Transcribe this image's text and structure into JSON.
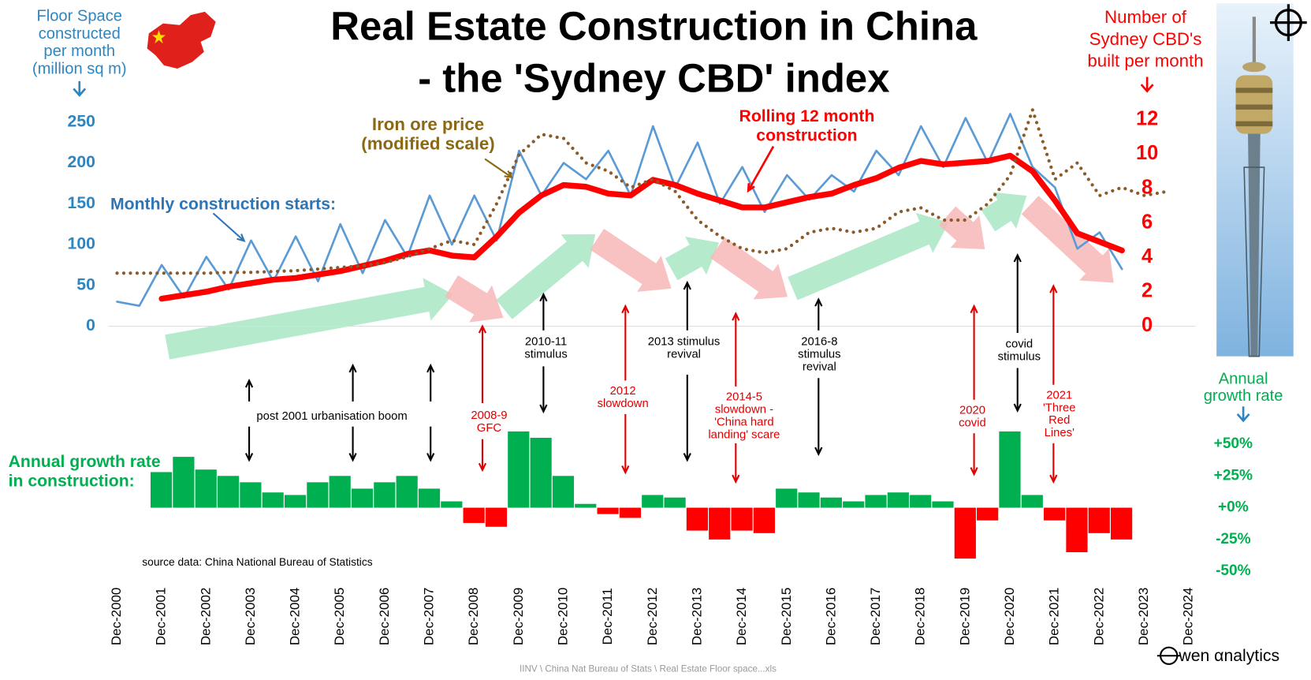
{
  "header": {
    "title": [
      "Real Estate Construction in China",
      "- the 'Sydney CBD' index"
    ]
  },
  "chart_data": {
    "type": "line",
    "x": [
      "Dec-2000",
      null,
      "Dec-2001",
      null,
      "Dec-2002",
      null,
      "Dec-2003",
      null,
      "Dec-2004",
      null,
      "Dec-2005",
      null,
      "Dec-2006",
      null,
      "Dec-2007",
      null,
      "Dec-2008",
      null,
      "Dec-2009",
      null,
      "Dec-2010",
      null,
      "Dec-2011",
      null,
      "Dec-2012",
      null,
      "Dec-2013",
      null,
      "Dec-2014",
      null,
      "Dec-2015",
      null,
      "Dec-2016",
      null,
      "Dec-2017",
      null,
      "Dec-2018",
      null,
      "Dec-2019",
      null,
      "Dec-2020",
      null,
      "Dec-2021",
      null,
      "Dec-2022",
      null,
      "Dec-2023",
      null,
      "Dec-2024"
    ],
    "ylabel": [
      "Floor Space",
      "constructed",
      "per month",
      "(million sq m)"
    ],
    "y2label": [
      "Number of",
      "Sydney CBD's",
      "built per month"
    ],
    "y3label": [
      "Annual",
      "growth rate"
    ],
    "ylim": [
      0,
      250
    ],
    "yticks": [
      0,
      50,
      100,
      150,
      200,
      250
    ],
    "y2lim": [
      0,
      12
    ],
    "y2ticks": [
      0,
      2,
      4,
      6,
      8,
      10,
      12
    ],
    "y3lim": [
      -50,
      50
    ],
    "y3ticks": [
      {
        "value": 50,
        "label": "+50%"
      },
      {
        "value": 25,
        "label": "+25%"
      },
      {
        "value": 0,
        "label": "+0%"
      },
      {
        "value": -25,
        "label": "-25%"
      },
      {
        "value": -50,
        "label": "-50%"
      }
    ],
    "series": [
      {
        "name": [
          "Monthly construction starts:"
        ],
        "type": "line",
        "color": "#5b9bd5",
        "values": [
          30,
          25,
          75,
          35,
          85,
          45,
          105,
          55,
          110,
          55,
          125,
          65,
          130,
          85,
          160,
          100,
          160,
          105,
          215,
          160,
          200,
          180,
          215,
          160,
          245,
          170,
          225,
          150,
          195,
          140,
          185,
          155,
          185,
          165,
          215,
          185,
          245,
          195,
          255,
          200,
          260,
          195,
          170,
          95,
          115,
          70,
          null,
          null,
          null
        ]
      },
      {
        "name": [
          "Rolling 12 month",
          "construction"
        ],
        "type": "line",
        "axis": "y2",
        "color": "#ff0000",
        "values": [
          null,
          null,
          1.6,
          1.8,
          2.0,
          2.3,
          2.5,
          2.7,
          2.8,
          3.0,
          3.2,
          3.5,
          3.8,
          4.2,
          4.4,
          4.1,
          4.0,
          5.2,
          6.6,
          7.6,
          8.2,
          8.1,
          7.7,
          7.6,
          8.5,
          8.2,
          7.7,
          7.3,
          6.9,
          6.9,
          7.2,
          7.5,
          7.7,
          8.2,
          8.6,
          9.2,
          9.6,
          9.4,
          9.5,
          9.6,
          9.9,
          9.0,
          7.3,
          5.4,
          4.9,
          4.4,
          null,
          null,
          null
        ]
      },
      {
        "name": [
          "Iron ore price",
          "(modified scale)"
        ],
        "type": "dotted",
        "color": "#8b5a2b",
        "values": [
          65,
          65,
          65,
          65,
          65,
          66,
          66,
          67,
          68,
          70,
          72,
          74,
          78,
          85,
          95,
          105,
          100,
          150,
          210,
          235,
          230,
          200,
          190,
          170,
          180,
          165,
          130,
          110,
          95,
          90,
          95,
          115,
          120,
          115,
          120,
          140,
          145,
          130,
          130,
          150,
          185,
          265,
          180,
          200,
          160,
          170,
          160,
          165,
          null
        ]
      },
      {
        "name": [
          "Annual growth rate",
          "in construction:"
        ],
        "type": "bar",
        "axis": "y3",
        "color": "#00b050",
        "negative_color": "#ff0000",
        "values": [
          null,
          null,
          28,
          40,
          30,
          25,
          20,
          12,
          10,
          20,
          25,
          15,
          20,
          25,
          15,
          5,
          -12,
          -15,
          60,
          55,
          25,
          3,
          -5,
          -8,
          10,
          8,
          -18,
          -25,
          -18,
          -20,
          15,
          12,
          8,
          5,
          10,
          12,
          10,
          5,
          -40,
          -10,
          60,
          10,
          -10,
          -35,
          -20,
          -25,
          null,
          null,
          null
        ]
      }
    ],
    "annotations": [
      {
        "text": [
          "post 2001 urbanisation boom"
        ]
      },
      {
        "text": [
          "2008-9",
          "GFC"
        ]
      },
      {
        "text": [
          "2010-11",
          "stimulus"
        ]
      },
      {
        "text": [
          "2012",
          "slowdown"
        ]
      },
      {
        "text": [
          "2013 stimulus",
          "revival"
        ]
      },
      {
        "text": [
          "2014-5",
          "slowdown -",
          "'China hard",
          "landing' scare"
        ]
      },
      {
        "text": [
          "2016-8",
          "stimulus",
          "revival"
        ]
      },
      {
        "text": [
          "2020",
          "covid"
        ]
      },
      {
        "text": [
          "covid",
          "stimulus"
        ]
      },
      {
        "text": [
          "2021",
          "'Three",
          "Red",
          "Lines'"
        ]
      }
    ],
    "source": "source data: China National Bureau of Statistics"
  },
  "footer": {
    "path": "IINV \\ China Nat Bureau of Stats \\ Real Estate Floor space...xls",
    "logo": "wen αnalytics"
  }
}
